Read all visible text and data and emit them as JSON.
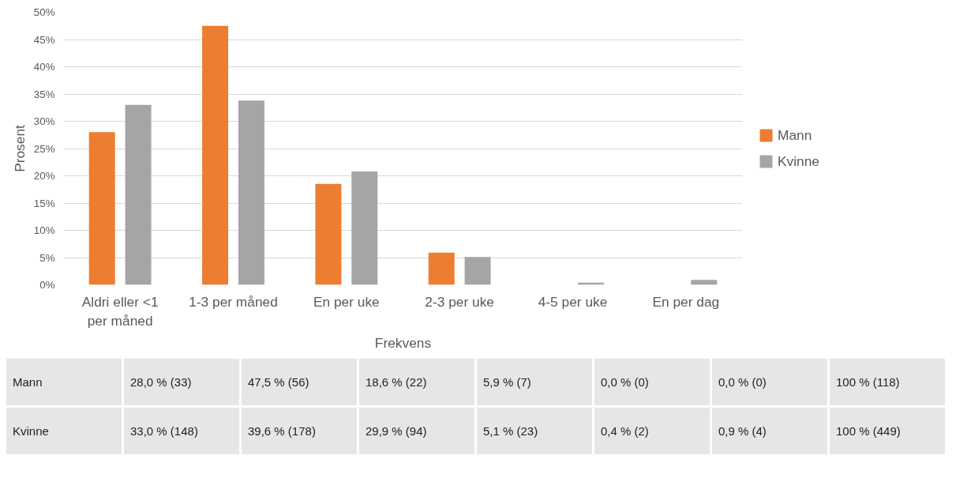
{
  "chart_data": {
    "type": "bar",
    "xlabel": "Frekvens",
    "ylabel": "Prosent",
    "categories": [
      "Aldri eller <1 per måned",
      "1-3 per måned",
      "En per uke",
      "2-3 per uke",
      "4-5 per uke",
      "En per dag"
    ],
    "series": [
      {
        "name": "Mann",
        "color": "#ed7d31",
        "values": [
          28.0,
          47.5,
          18.5,
          5.9,
          0,
          0
        ]
      },
      {
        "name": "Kvinne",
        "color": "#a5a5a5",
        "values": [
          33.0,
          33.8,
          20.8,
          5.1,
          0.4,
          0.9
        ]
      }
    ],
    "annotations": [
      "28,0 % (33)",
      "47,5 % (56)",
      "18,6 % (22)",
      "5,9 % (7)",
      "0,0 % (0)",
      "0,0 % (0)",
      "100 % (118)",
      "33,0 % (148)",
      "39,6 % (178)",
      "29,9 % (94)",
      "5,1 % (23)",
      "0,4 % (2)",
      "0,9 % (4)",
      "100 % (449)"
    ],
    "ylim": [
      0,
      50
    ],
    "yticks": [
      {
        "value": 0,
        "label": "0%"
      },
      {
        "value": 5,
        "label": "5%"
      },
      {
        "value": 10,
        "label": "10%"
      },
      {
        "value": 15,
        "label": "15%"
      },
      {
        "value": 20,
        "label": "20%"
      },
      {
        "value": 25,
        "label": "25%"
      },
      {
        "value": 30,
        "label": "30%"
      },
      {
        "value": 35,
        "label": "35%"
      },
      {
        "value": 40,
        "label": "40%"
      },
      {
        "value": 45,
        "label": "45%"
      },
      {
        "value": 50,
        "label": "50%"
      }
    ],
    "grid": "y",
    "legend": "right"
  }
}
